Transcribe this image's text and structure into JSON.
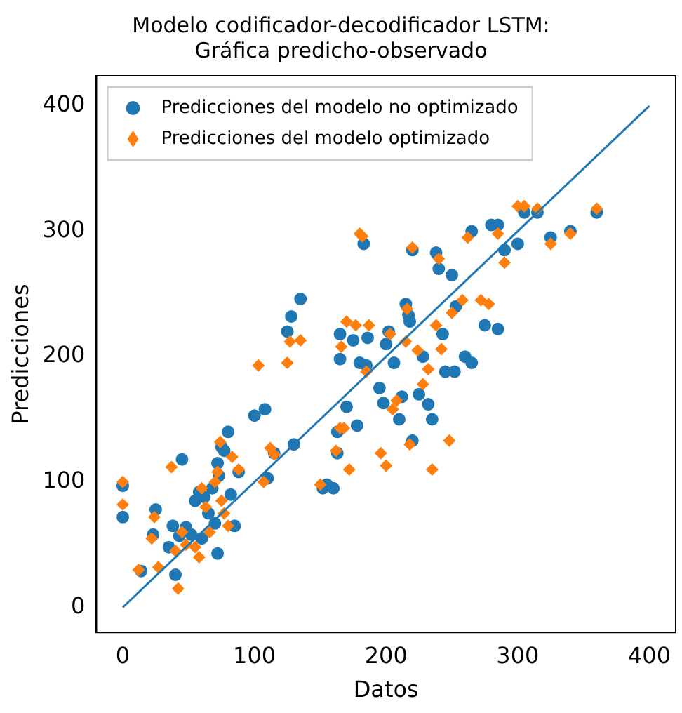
{
  "chart_data": {
    "type": "scatter",
    "title": "Modelo codificador-decodificador LSTM:\nGráfica predicho-observado",
    "xlabel": "Datos",
    "ylabel": "Predicciones",
    "xlim": [
      -20,
      420
    ],
    "xticks": [
      0,
      100,
      200,
      300,
      400
    ],
    "ylim": [
      -20,
      424
    ],
    "yticks": [
      0,
      100,
      200,
      300,
      400
    ],
    "grid": false,
    "legend": "top left",
    "series": [
      {
        "name": "Predicciones del modelo no optimizado",
        "color": "#1f77b4",
        "marker": "circle",
        "x": [
          0,
          0,
          14,
          23,
          25,
          35,
          38,
          40,
          43,
          45,
          48,
          52,
          55,
          58,
          60,
          62,
          65,
          68,
          70,
          72,
          72,
          73,
          75,
          77,
          80,
          82,
          85,
          88,
          100,
          108,
          110,
          115,
          125,
          128,
          130,
          135,
          152,
          155,
          160,
          163,
          163,
          165,
          165,
          170,
          175,
          178,
          180,
          183,
          185,
          186,
          195,
          198,
          200,
          202,
          206,
          210,
          212,
          215,
          217,
          218,
          220,
          220,
          225,
          228,
          232,
          235,
          238,
          240,
          243,
          245,
          250,
          252,
          253,
          260,
          265,
          265,
          275,
          280,
          285,
          285,
          290,
          300,
          305,
          315,
          325,
          340,
          360
        ],
        "values": [
          72,
          97,
          29,
          58,
          78,
          48,
          65,
          26,
          57,
          118,
          64,
          58,
          85,
          92,
          55,
          88,
          75,
          95,
          67,
          43,
          115,
          105,
          128,
          125,
          140,
          90,
          65,
          108,
          153,
          158,
          103,
          123,
          220,
          232,
          130,
          246,
          95,
          98,
          95,
          140,
          123,
          218,
          198,
          160,
          213,
          145,
          195,
          290,
          193,
          215,
          175,
          163,
          210,
          220,
          195,
          150,
          168,
          242,
          233,
          228,
          133,
          285,
          170,
          200,
          162,
          150,
          283,
          270,
          218,
          188,
          265,
          188,
          240,
          200,
          195,
          300,
          225,
          305,
          222,
          305,
          285,
          290,
          315,
          315,
          295,
          300,
          315
        ]
      },
      {
        "name": "Predicciones del modelo optimizado",
        "color": "#ff7f0e",
        "marker": "diamond",
        "x": [
          0,
          0,
          12,
          22,
          24,
          27,
          37,
          40,
          42,
          45,
          48,
          55,
          58,
          60,
          63,
          66,
          70,
          72,
          74,
          75,
          77,
          80,
          83,
          88,
          103,
          107,
          112,
          115,
          125,
          127,
          135,
          150,
          162,
          165,
          166,
          168,
          170,
          172,
          177,
          180,
          182,
          185,
          187,
          196,
          200,
          203,
          205,
          208,
          215,
          216,
          218,
          220,
          224,
          228,
          232,
          235,
          238,
          240,
          242,
          248,
          250,
          258,
          262,
          272,
          278,
          285,
          290,
          300,
          305,
          315,
          325,
          340,
          360
        ],
        "values": [
          100,
          82,
          30,
          55,
          72,
          32,
          112,
          45,
          15,
          60,
          50,
          48,
          40,
          95,
          80,
          60,
          100,
          108,
          132,
          85,
          75,
          65,
          120,
          110,
          193,
          100,
          127,
          122,
          195,
          212,
          213,
          98,
          125,
          143,
          208,
          143,
          228,
          110,
          225,
          298,
          296,
          188,
          225,
          123,
          113,
          218,
          158,
          165,
          212,
          238,
          130,
          287,
          205,
          178,
          190,
          110,
          225,
          278,
          206,
          133,
          235,
          245,
          295,
          245,
          242,
          298,
          275,
          320,
          320,
          318,
          290,
          298,
          318
        ]
      },
      {
        "type": "line",
        "color": "#1f77b4",
        "marker": "none",
        "x": [
          0,
          400
        ],
        "values": [
          0,
          400
        ]
      }
    ]
  }
}
